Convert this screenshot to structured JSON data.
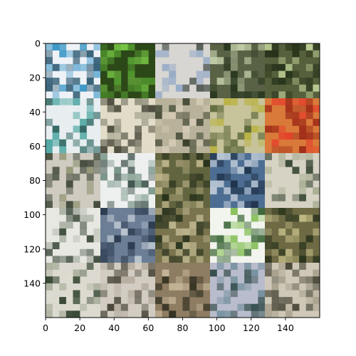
{
  "image_grid": {
    "rows": 5,
    "cols": 5,
    "pixels_per_tile": 32,
    "x_ticks": [
      "0",
      "20",
      "40",
      "60",
      "80",
      "100",
      "120",
      "140"
    ],
    "y_ticks": [
      "0",
      "20",
      "40",
      "60",
      "80",
      "100",
      "120",
      "140"
    ],
    "xlim": [
      0,
      160
    ],
    "ylim": [
      0,
      160
    ],
    "tiles": [
      {
        "bg": "#eef2f7",
        "fg": "#1e4d66",
        "accent": "#2c8fc2"
      },
      {
        "bg": "#2c4818",
        "fg": "#56a132",
        "accent": "#7fd24a"
      },
      {
        "bg": "#d8d6d2",
        "fg": "#2a3630",
        "accent": "#8fa6c6"
      },
      {
        "bg": "#5a6246",
        "fg": "#24341c",
        "accent": "#c9d6b0"
      },
      {
        "bg": "#56603c",
        "fg": "#1e2a14",
        "accent": "#c7d89e"
      },
      {
        "bg": "#e8eef0",
        "fg": "#1f5a55",
        "accent": "#3d9f9a"
      },
      {
        "bg": "#e2dcc8",
        "fg": "#3a3a2c",
        "accent": "#8e8e7a"
      },
      {
        "bg": "#b9b29a",
        "fg": "#2c3421",
        "accent": "#d8cdb8"
      },
      {
        "bg": "#c7c39a",
        "fg": "#4b5a2a",
        "accent": "#b8b13a"
      },
      {
        "bg": "#d97a3a",
        "fg": "#9a2414",
        "accent": "#e63a2a"
      },
      {
        "bg": "#cfcbc0",
        "fg": "#2f3a2a",
        "accent": "#8a8e6a"
      },
      {
        "bg": "#eef0f0",
        "fg": "#263c34",
        "accent": "#6a8a7a"
      },
      {
        "bg": "#62653f",
        "fg": "#1f2a16",
        "accent": "#c4b98d"
      },
      {
        "bg": "#4d6e92",
        "fg": "#1b2d44",
        "accent": "#c9d4df"
      },
      {
        "bg": "#d6d2c4",
        "fg": "#2a3a28",
        "accent": "#a2a88a"
      },
      {
        "bg": "#e8e8e2",
        "fg": "#2d3d2c",
        "accent": "#a8aea2"
      },
      {
        "bg": "#6c7e96",
        "fg": "#233346",
        "accent": "#c4ced6"
      },
      {
        "bg": "#7a744e",
        "fg": "#26301c",
        "accent": "#c8c098"
      },
      {
        "bg": "#f2f4ee",
        "fg": "#2b5a28",
        "accent": "#7dbb4a"
      },
      {
        "bg": "#6d6a44",
        "fg": "#232e18",
        "accent": "#c8c08a"
      },
      {
        "bg": "#dcdad0",
        "fg": "#243622",
        "accent": "#a8ad9a"
      },
      {
        "bg": "#d2ccc2",
        "fg": "#3a3628",
        "accent": "#b1a89a"
      },
      {
        "bg": "#8e7d62",
        "fg": "#2b2a1c",
        "accent": "#d0c0a2"
      },
      {
        "bg": "#b9bccc",
        "fg": "#1e3c36",
        "accent": "#6d8c9a"
      },
      {
        "bg": "#cfc8b8",
        "fg": "#3c3a2c",
        "accent": "#a59e8a"
      }
    ]
  }
}
